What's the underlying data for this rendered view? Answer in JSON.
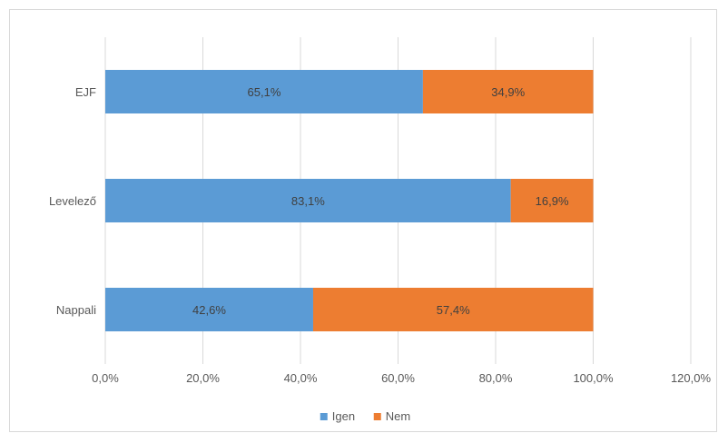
{
  "chart_data": {
    "type": "bar",
    "orientation": "horizontal",
    "stacked": true,
    "categories": [
      "EJF",
      "Levelező",
      "Nappali"
    ],
    "series": [
      {
        "name": "Igen",
        "color": "#5b9bd5",
        "values": [
          65.1,
          83.1,
          42.6
        ],
        "labels": [
          "65,1%",
          "83,1%",
          "42,6%"
        ]
      },
      {
        "name": "Nem",
        "color": "#ed7d31",
        "values": [
          34.9,
          16.9,
          57.4
        ],
        "labels": [
          "34,9%",
          "16,9%",
          "57,4%"
        ]
      }
    ],
    "xlim": [
      0,
      120
    ],
    "xticks": [
      0,
      20,
      40,
      60,
      80,
      100,
      120
    ],
    "xtick_labels": [
      "0,0%",
      "20,0%",
      "40,0%",
      "60,0%",
      "80,0%",
      "100,0%",
      "120,0%"
    ],
    "grid": true,
    "legend": "bottom"
  }
}
